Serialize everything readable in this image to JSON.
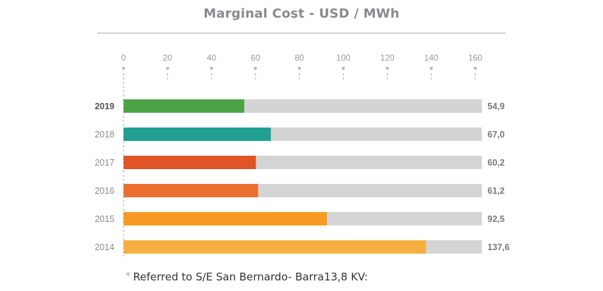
{
  "chart_data": {
    "type": "bar",
    "orientation": "horizontal",
    "title": "Marginal Cost - USD / MWh",
    "xlim": [
      0,
      160
    ],
    "ticks": [
      "0",
      "20",
      "40",
      "60",
      "80",
      "100",
      "120",
      "140",
      "160"
    ],
    "tick_values": [
      0,
      20,
      40,
      60,
      80,
      100,
      120,
      140,
      160
    ],
    "bar_full_value": 163,
    "categories": [
      "2019",
      "2018",
      "2017",
      "2016",
      "2015",
      "2014"
    ],
    "values": [
      54.9,
      67.0,
      60.2,
      61.2,
      92.5,
      137.6
    ],
    "value_labels": [
      "54,9",
      "67,0",
      "60,2",
      "61,2",
      "92,5",
      "137,6"
    ],
    "bold_category": "2019",
    "colors": [
      "#4aa344",
      "#1fa093",
      "#e05426",
      "#ec6e30",
      "#f89a22",
      "#f5b041"
    ],
    "track_color": "#d4d4d4",
    "grid": false,
    "legend": "none"
  },
  "footnote": {
    "star": "*",
    "text": "Referred to S/E San Bernardo- Barra13,8 KV:"
  }
}
